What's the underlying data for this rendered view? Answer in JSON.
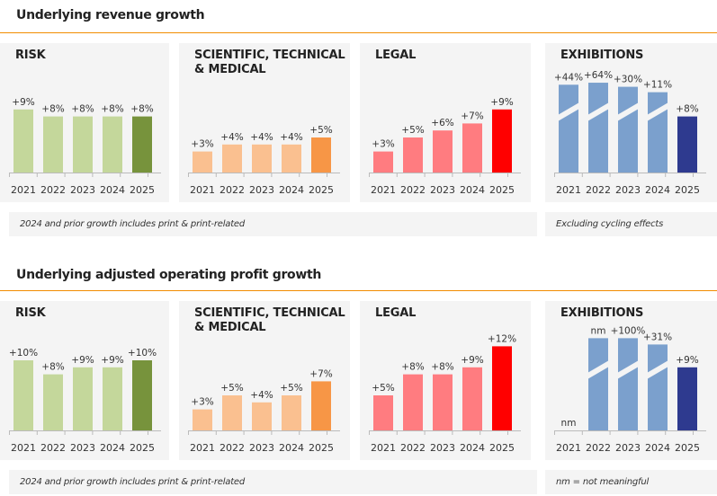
{
  "sections": [
    {
      "title": "Underlying revenue growth",
      "notes": [
        "2024 and prior growth includes print & print-related",
        "Excluding cycling effects"
      ]
    },
    {
      "title": "Underlying adjusted operating profit growth",
      "notes": [
        "2024 and prior growth includes print & print-related",
        "nm = not meaningful"
      ]
    }
  ],
  "colors": {
    "risk": [
      "#c4d79b",
      "#77933c"
    ],
    "stm": [
      "#fac090",
      "#f79646"
    ],
    "legal": [
      "#ff7c80",
      "#ff0000"
    ],
    "exhibitions": [
      "#7ba0cd",
      "#2e3a8f"
    ],
    "accent_rule": "#f28c00"
  },
  "chart_data": [
    {
      "type": "bar",
      "section": 0,
      "key": "risk",
      "title": "RISK",
      "categories": [
        "2021",
        "2022",
        "2023",
        "2024",
        "2025"
      ],
      "values": [
        9,
        8,
        8,
        8,
        8
      ],
      "labels": [
        "+9%",
        "+8%",
        "+8%",
        "+8%",
        "+8%"
      ],
      "broken": [
        false,
        false,
        false,
        false,
        false
      ],
      "unit": "%"
    },
    {
      "type": "bar",
      "section": 0,
      "key": "stm",
      "title": "SCIENTIFIC, TECHNICAL & MEDICAL",
      "categories": [
        "2021",
        "2022",
        "2023",
        "2024",
        "2025"
      ],
      "values": [
        3,
        4,
        4,
        4,
        5
      ],
      "labels": [
        "+3%",
        "+4%",
        "+4%",
        "+4%",
        "+5%"
      ],
      "broken": [
        false,
        false,
        false,
        false,
        false
      ],
      "unit": "%"
    },
    {
      "type": "bar",
      "section": 0,
      "key": "legal",
      "title": "LEGAL",
      "categories": [
        "2021",
        "2022",
        "2023",
        "2024",
        "2025"
      ],
      "values": [
        3,
        5,
        6,
        7,
        9
      ],
      "labels": [
        "+3%",
        "+5%",
        "+6%",
        "+7%",
        "+9%"
      ],
      "broken": [
        false,
        false,
        false,
        false,
        false
      ],
      "unit": "%"
    },
    {
      "type": "bar",
      "section": 0,
      "key": "exhibitions",
      "title": "EXHIBITIONS",
      "categories": [
        "2021",
        "2022",
        "2023",
        "2024",
        "2025"
      ],
      "values": [
        44,
        64,
        30,
        11,
        8
      ],
      "labels": [
        "+44%",
        "+64%",
        "+30%",
        "+11%",
        "+8%"
      ],
      "broken": [
        true,
        true,
        true,
        true,
        false
      ],
      "unit": "%"
    },
    {
      "type": "bar",
      "section": 1,
      "key": "risk",
      "title": "RISK",
      "categories": [
        "2021",
        "2022",
        "2023",
        "2024",
        "2025"
      ],
      "values": [
        10,
        8,
        9,
        9,
        10
      ],
      "labels": [
        "+10%",
        "+8%",
        "+9%",
        "+9%",
        "+10%"
      ],
      "broken": [
        false,
        false,
        false,
        false,
        false
      ],
      "unit": "%"
    },
    {
      "type": "bar",
      "section": 1,
      "key": "stm",
      "title": "SCIENTIFIC, TECHNICAL & MEDICAL",
      "categories": [
        "2021",
        "2022",
        "2023",
        "2024",
        "2025"
      ],
      "values": [
        3,
        5,
        4,
        5,
        7
      ],
      "labels": [
        "+3%",
        "+5%",
        "+4%",
        "+5%",
        "+7%"
      ],
      "broken": [
        false,
        false,
        false,
        false,
        false
      ],
      "unit": "%"
    },
    {
      "type": "bar",
      "section": 1,
      "key": "legal",
      "title": "LEGAL",
      "categories": [
        "2021",
        "2022",
        "2023",
        "2024",
        "2025"
      ],
      "values": [
        5,
        8,
        8,
        9,
        12
      ],
      "labels": [
        "+5%",
        "+8%",
        "+8%",
        "+9%",
        "+12%"
      ],
      "broken": [
        false,
        false,
        false,
        false,
        false
      ],
      "unit": "%"
    },
    {
      "type": "bar",
      "section": 1,
      "key": "exhibitions",
      "title": "EXHIBITIONS",
      "categories": [
        "2021",
        "2022",
        "2023",
        "2024",
        "2025"
      ],
      "values": [
        null,
        null,
        100,
        31,
        9
      ],
      "labels": [
        "nm",
        "nm",
        "+100%",
        "+31%",
        "+9%"
      ],
      "broken": [
        false,
        true,
        true,
        true,
        false
      ],
      "unit": "%"
    }
  ]
}
